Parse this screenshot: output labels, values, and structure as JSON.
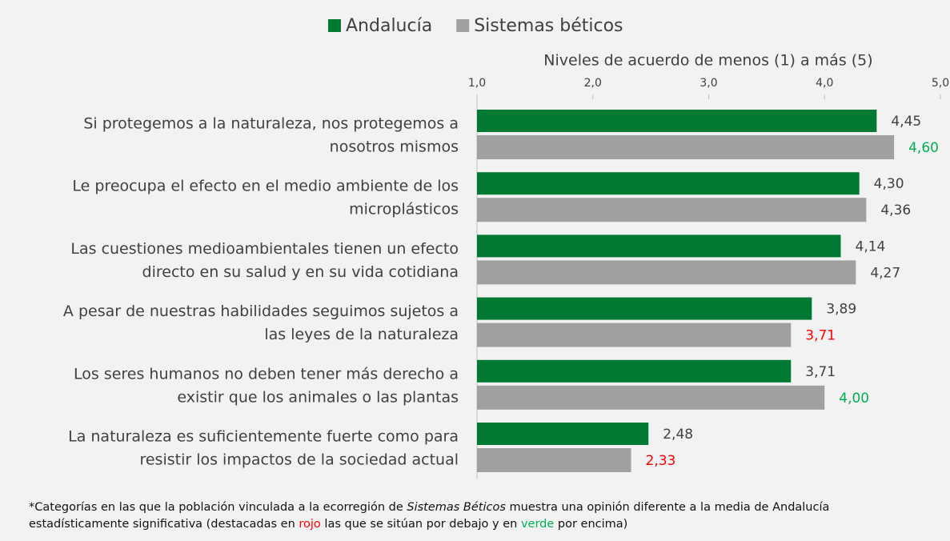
{
  "chart_data": {
    "type": "barh",
    "axis_title": "Niveles de acuerdo de menos (1) a más (5)",
    "categories": [
      [
        "Si protegemos a la naturaleza, nos protegemos a",
        "nosotros mismos"
      ],
      [
        "Le preocupa el efecto en el medio ambiente de los",
        "microplásticos"
      ],
      [
        "Las cuestiones medioambientales tienen un efecto",
        "directo en su salud y en su vida cotidiana"
      ],
      [
        "A pesar de nuestras habilidades seguimos sujetos a",
        "las leyes de la naturaleza"
      ],
      [
        "Los seres humanos no deben tener más derecho a",
        "existir que los animales o las plantas"
      ],
      [
        "La naturaleza es suficientemente fuerte como para",
        "resistir los impactos de la sociedad actual"
      ]
    ],
    "series": [
      {
        "name": "Andalucía",
        "color": "#007a33",
        "values": [
          4.45,
          4.3,
          4.14,
          3.89,
          3.71,
          2.48
        ],
        "value_labels": [
          "4,45",
          "4,30",
          "4,14",
          "3,89",
          "3,71",
          "2,48"
        ],
        "label_colors": [
          "#404040",
          "#404040",
          "#404040",
          "#404040",
          "#404040",
          "#404040"
        ]
      },
      {
        "name": "Sistemas béticos",
        "color": "#a0a0a0",
        "values": [
          4.6,
          4.36,
          4.27,
          3.71,
          4.0,
          2.33
        ],
        "value_labels": [
          "4,60",
          "4,36",
          "4,27",
          "3,71",
          "4,00",
          "2,33"
        ],
        "label_colors": [
          "#00b050",
          "#404040",
          "#404040",
          "#ff0000",
          "#00b050",
          "#ff0000"
        ]
      }
    ],
    "xlim": [
      1,
      5
    ],
    "xticks": [
      {
        "value": 1,
        "label": "1,0"
      },
      {
        "value": 2,
        "label": "2,0"
      },
      {
        "value": 3,
        "label": "3,0"
      },
      {
        "value": 4,
        "label": "4,0"
      },
      {
        "value": 5,
        "label": "5,0"
      }
    ],
    "grid": false,
    "legend": "top",
    "note": [
      [
        "*Categorías en las que la población vinculada a la ecorregión de ",
        "Sistemas Béticos",
        " muestra una opinión diferente a la media de Andalucía"
      ],
      [
        "estadísticamente significativa (destacadas en ",
        "rojo",
        " las que se sitúan por debajo y en ",
        "verde",
        " por encima)"
      ]
    ]
  }
}
